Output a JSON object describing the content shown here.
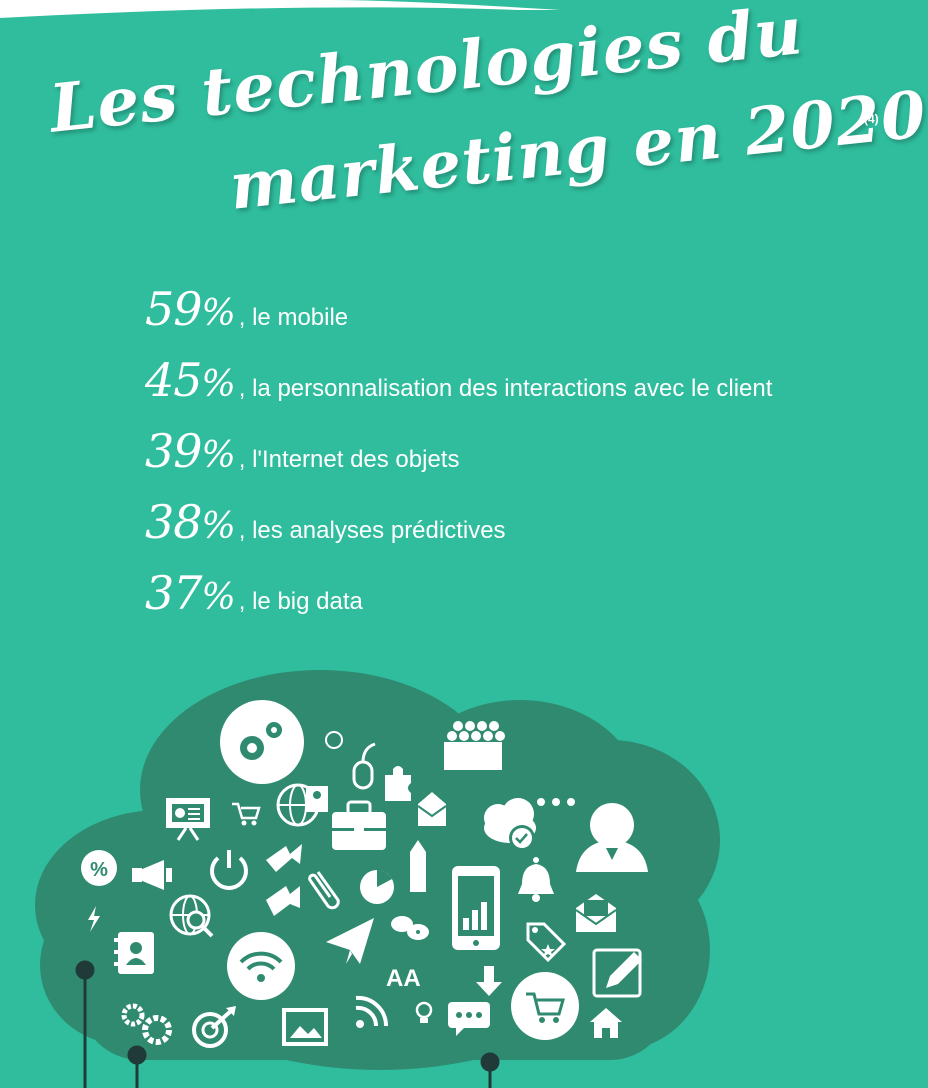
{
  "title": {
    "line1": "Les technologies du",
    "line2": "marketing en 2020",
    "footnote": "(4)"
  },
  "stats": [
    {
      "percent": "59",
      "label": ", le mobile"
    },
    {
      "percent": "45",
      "label": ", la personnalisation des interactions avec le client"
    },
    {
      "percent": "39",
      "label": ", l'Internet des objets"
    },
    {
      "percent": "38",
      "label": ", les analyses prédictives"
    },
    {
      "percent": "37",
      "label": ", le big data"
    }
  ],
  "cloud": {
    "percent_icon_text": "%",
    "fonts_icon_text": "AA",
    "icons": [
      "gears-icon",
      "chat-icon",
      "mouse-icon",
      "puzzle-icon",
      "audience-icon",
      "presentation-icon",
      "cart-icon",
      "globe-icon",
      "briefcase-icon",
      "envelope-icon",
      "cloud-check-icon",
      "dots-icon",
      "user-icon",
      "percent-icon",
      "megaphone-icon",
      "power-icon",
      "arrows-icon",
      "paperclip-icon",
      "pie-chart-icon",
      "pencil-icon",
      "tablet-chart-icon",
      "bell-icon",
      "lightning-icon",
      "globe-search-icon",
      "contacts-icon",
      "paper-plane-icon",
      "chat-bubbles-icon",
      "tag-icon",
      "open-mail-icon",
      "wifi-icon",
      "fonts-icon",
      "download-icon",
      "cart-circle-icon",
      "edit-icon",
      "rss-icon",
      "lightbulb-icon",
      "message-icon",
      "home-icon",
      "cogs-icon",
      "target-icon",
      "image-icon"
    ]
  },
  "colors": {
    "background": "#2fbd9d",
    "cloud": "#2f8a70",
    "cable": "#1f3a38",
    "text": "#ffffff"
  }
}
